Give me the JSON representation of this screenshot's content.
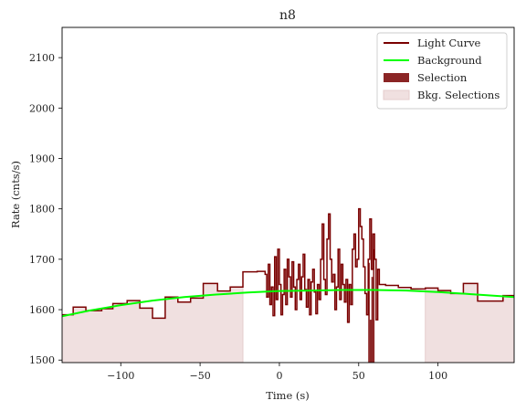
{
  "chart_data": {
    "type": "line",
    "title": "n8",
    "xlabel": "Time (s)",
    "ylabel": "Rate (cnts/s)",
    "xlim": [
      -137,
      148
    ],
    "ylim": [
      1495,
      2160
    ],
    "xticks": [
      -100,
      -50,
      0,
      50,
      100
    ],
    "yticks": [
      1500,
      1600,
      1700,
      1800,
      1900,
      2000,
      2100
    ],
    "xtick_labels": [
      "−100",
      "−50",
      "0",
      "50",
      "100"
    ],
    "ytick_labels": [
      "1500",
      "1600",
      "1700",
      "1800",
      "1900",
      "2000",
      "2100"
    ],
    "legend_position": "top-right",
    "legend": [
      {
        "label": "Light Curve",
        "kind": "line",
        "color": "#7a0000"
      },
      {
        "label": "Background",
        "kind": "line",
        "color": "#00ff00"
      },
      {
        "label": "Selection",
        "kind": "patch",
        "color": "#8b2525"
      },
      {
        "label": "Bkg. Selections",
        "kind": "patch",
        "color": "#f0e0e0"
      }
    ],
    "colors": {
      "light_curve": "#7a0000",
      "background": "#00ff00",
      "selection": "#8b2525",
      "bkg_selection_fill": "#f0e0e0",
      "bkg_selection_edge": "#e5cccc"
    },
    "series": [
      {
        "name": "Light Curve",
        "kind": "step",
        "points": [
          [
            -137,
            1590
          ],
          [
            -130,
            1605
          ],
          [
            -122,
            1598
          ],
          [
            -112,
            1602
          ],
          [
            -105,
            1612
          ],
          [
            -96,
            1618
          ],
          [
            -88,
            1603
          ],
          [
            -80,
            1583
          ],
          [
            -72,
            1625
          ],
          [
            -64,
            1615
          ],
          [
            -56,
            1623
          ],
          [
            -48,
            1652
          ],
          [
            -39,
            1637
          ],
          [
            -31,
            1645
          ],
          [
            -23,
            1675
          ],
          [
            -14,
            1676
          ],
          [
            -9,
            1670
          ],
          [
            -8,
            1625
          ],
          [
            -7,
            1690
          ],
          [
            -6,
            1610
          ],
          [
            -5,
            1645
          ],
          [
            -4,
            1588
          ],
          [
            -3,
            1705
          ],
          [
            -2,
            1620
          ],
          [
            -1,
            1720
          ],
          [
            0,
            1650
          ],
          [
            1,
            1590
          ],
          [
            2,
            1630
          ],
          [
            3,
            1680
          ],
          [
            4,
            1610
          ],
          [
            5,
            1700
          ],
          [
            6,
            1665
          ],
          [
            7,
            1625
          ],
          [
            8,
            1695
          ],
          [
            9,
            1645
          ],
          [
            10,
            1600
          ],
          [
            11,
            1660
          ],
          [
            12,
            1690
          ],
          [
            13,
            1620
          ],
          [
            14,
            1665
          ],
          [
            15,
            1710
          ],
          [
            16,
            1640
          ],
          [
            17,
            1605
          ],
          [
            18,
            1660
          ],
          [
            19,
            1590
          ],
          [
            20,
            1655
          ],
          [
            21,
            1680
          ],
          [
            22,
            1635
          ],
          [
            23,
            1592
          ],
          [
            24,
            1650
          ],
          [
            25,
            1620
          ],
          [
            26,
            1700
          ],
          [
            27,
            1770
          ],
          [
            28,
            1660
          ],
          [
            29,
            1630
          ],
          [
            30,
            1740
          ],
          [
            31,
            1790
          ],
          [
            32,
            1700
          ],
          [
            33,
            1655
          ],
          [
            34,
            1670
          ],
          [
            35,
            1600
          ],
          [
            36,
            1645
          ],
          [
            37,
            1720
          ],
          [
            38,
            1620
          ],
          [
            39,
            1690
          ],
          [
            40,
            1650
          ],
          [
            41,
            1615
          ],
          [
            42,
            1660
          ],
          [
            43,
            1575
          ],
          [
            44,
            1650
          ],
          [
            45,
            1610
          ],
          [
            46,
            1720
          ],
          [
            47,
            1750
          ],
          [
            48,
            1685
          ],
          [
            49,
            1700
          ],
          [
            50,
            1800
          ],
          [
            51,
            1765
          ],
          [
            52,
            1740
          ],
          [
            53,
            1685
          ],
          [
            54,
            1632
          ],
          [
            55,
            1590
          ],
          [
            56,
            1700
          ],
          [
            57,
            1780
          ],
          [
            58,
            1680
          ],
          [
            59,
            1750
          ],
          [
            60,
            1700
          ],
          [
            61,
            1580
          ],
          [
            62,
            1680
          ],
          [
            63,
            1650
          ],
          [
            67,
            1648
          ],
          [
            75,
            1644
          ],
          [
            83,
            1641
          ],
          [
            92,
            1643
          ],
          [
            100,
            1638
          ],
          [
            108,
            1632
          ],
          [
            116,
            1652
          ],
          [
            125,
            1617
          ],
          [
            133,
            1617
          ],
          [
            141,
            1628
          ],
          [
            148,
            1628
          ]
        ]
      },
      {
        "name": "Background",
        "kind": "line",
        "points": [
          [
            -137,
            1587
          ],
          [
            -120,
            1598
          ],
          [
            -100,
            1609
          ],
          [
            -80,
            1618
          ],
          [
            -60,
            1625
          ],
          [
            -40,
            1630
          ],
          [
            -20,
            1634
          ],
          [
            0,
            1637
          ],
          [
            20,
            1638
          ],
          [
            40,
            1639
          ],
          [
            60,
            1639
          ],
          [
            80,
            1638
          ],
          [
            100,
            1635
          ],
          [
            120,
            1631
          ],
          [
            148,
            1625
          ]
        ]
      },
      {
        "name": "Selection",
        "kind": "step-fill",
        "points": [
          [
            56,
            1693
          ],
          [
            57,
            1480
          ],
          [
            58,
            1665
          ],
          [
            59,
            1720
          ],
          [
            60,
            1580
          ]
        ]
      }
    ],
    "background_selections": [
      {
        "from": -137,
        "to": -23
      },
      {
        "from": 92,
        "to": 148
      }
    ]
  }
}
